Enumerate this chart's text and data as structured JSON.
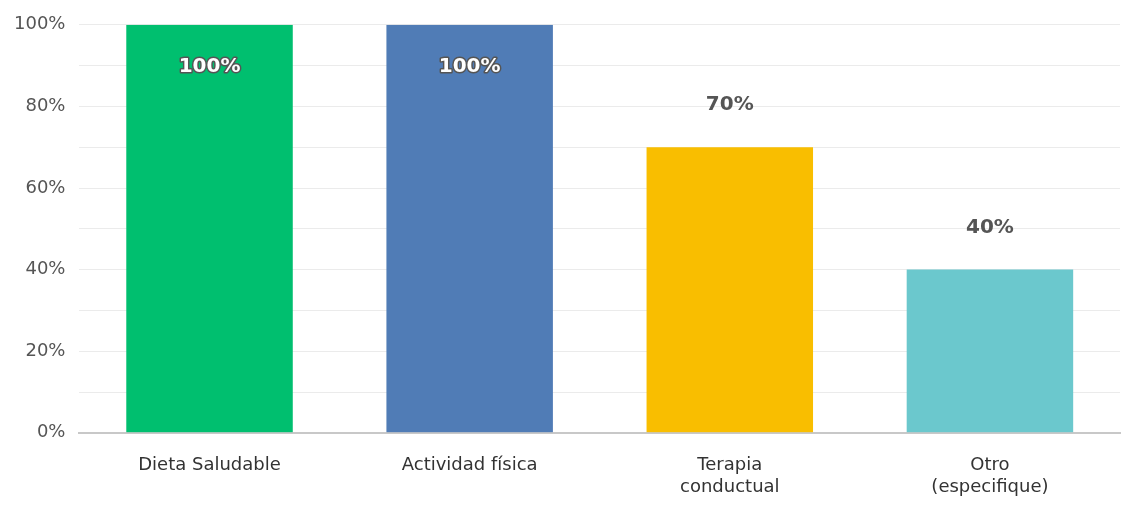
{
  "chart_data": {
    "type": "bar",
    "categories": [
      "Dieta Saludable",
      "Actividad física",
      "Terapia\nconductual",
      "Otro\n(especifique)"
    ],
    "values": [
      100,
      100,
      70,
      40
    ],
    "colors": [
      "#00bf6f",
      "#507cb6",
      "#f9be00",
      "#6bc8cd"
    ],
    "ylim": [
      0,
      100
    ],
    "yticks": [
      {
        "value": 0,
        "label": "0%"
      },
      {
        "value": 10,
        "label": null
      },
      {
        "value": 20,
        "label": "20%"
      },
      {
        "value": 30,
        "label": null
      },
      {
        "value": 40,
        "label": "40%"
      },
      {
        "value": 50,
        "label": null
      },
      {
        "value": 60,
        "label": "60%"
      },
      {
        "value": 70,
        "label": null
      },
      {
        "value": 80,
        "label": "80%"
      },
      {
        "value": 90,
        "label": null
      },
      {
        "value": 100,
        "label": "100%"
      }
    ],
    "value_labels": [
      "100%",
      "100%",
      "70%",
      "40%"
    ],
    "grid": "y",
    "legend": false
  }
}
